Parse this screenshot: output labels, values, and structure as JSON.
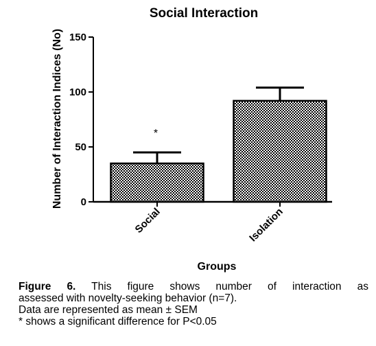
{
  "chart_data": {
    "type": "bar",
    "title": "Social Interaction",
    "xlabel": "Groups",
    "ylabel": "Number of Interaction Indices (No)",
    "categories": [
      "Social",
      "Isolation"
    ],
    "values": [
      35,
      92
    ],
    "errors": [
      10,
      12
    ],
    "annotations": [
      "*",
      ""
    ],
    "ylim": [
      0,
      150
    ],
    "yticks": [
      0,
      50,
      100,
      150
    ],
    "grid": false,
    "bar_fill": "checkered"
  },
  "caption": {
    "label": "Figure 6.",
    "line1": "This figure shows number of interaction as",
    "line2": "assessed with novelty-seeking behavior (n=7).",
    "line3": "Data are represented as mean ± SEM",
    "line4": "* shows a significant difference for P<0.05"
  },
  "colors": {
    "ink": "#000000",
    "background": "#ffffff"
  }
}
